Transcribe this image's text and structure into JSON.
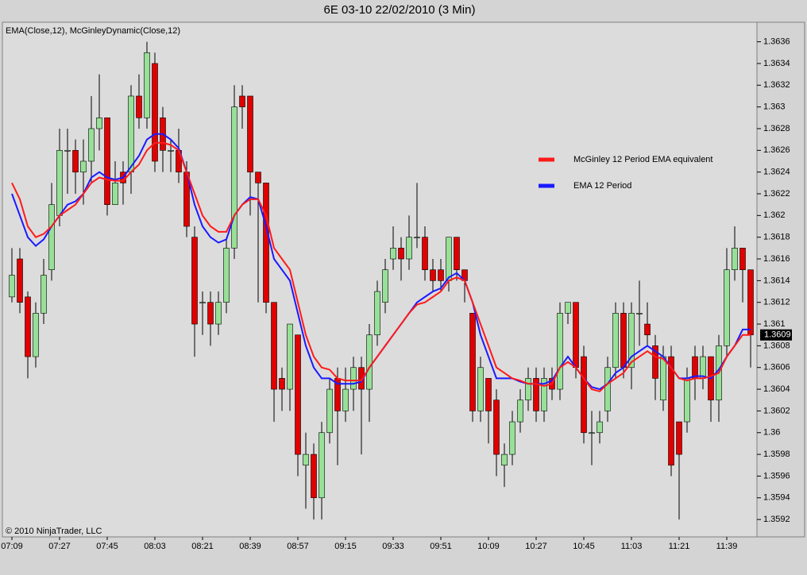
{
  "chart_data": {
    "type": "candlestick",
    "title": "6E 03-10  22/02/2010 (3 Min)",
    "subtitle": "EMA(Close,12), McGinleyDynamic(Close,12)",
    "annotation": "© 2010 NinjaTrader, LLC",
    "categories": [
      "07:09",
      null,
      null,
      null,
      null,
      null,
      "07:27",
      null,
      null,
      null,
      null,
      null,
      "07:45",
      null,
      null,
      null,
      null,
      null,
      "08:03",
      null,
      null,
      null,
      null,
      null,
      "08:21",
      null,
      null,
      null,
      null,
      null,
      "08:39",
      null,
      null,
      null,
      null,
      null,
      "08:57",
      null,
      null,
      null,
      null,
      null,
      "09:15",
      null,
      null,
      null,
      null,
      null,
      "09:33",
      null,
      null,
      null,
      null,
      null,
      "09:51",
      null,
      null,
      null,
      null,
      null,
      "10:09",
      null,
      null,
      null,
      null,
      null,
      "10:27",
      null,
      null,
      null,
      null,
      null,
      "10:45",
      null,
      null,
      null,
      null,
      null,
      "11:03",
      null,
      null,
      null,
      null,
      null,
      "11:21",
      null,
      null,
      null,
      null,
      null,
      "11:39",
      null,
      null,
      null
    ],
    "open": [
      1.36125,
      1.3616,
      1.36125,
      1.3607,
      1.3611,
      1.3615,
      1.362,
      1.3626,
      1.3626,
      1.3624,
      1.3625,
      1.3628,
      1.3629,
      1.3621,
      1.3624,
      1.3624,
      1.3631,
      1.3629,
      1.3634,
      1.3629,
      1.3626,
      1.3626,
      1.3624,
      1.3618,
      1.3612,
      1.3612,
      1.361,
      1.3612,
      1.3617,
      1.3631,
      1.3631,
      1.3624,
      1.3623,
      1.3612,
      1.3605,
      1.3604,
      1.3609,
      1.3597,
      1.3598,
      1.3594,
      1.36,
      1.3605,
      1.3602,
      1.3604,
      1.3606,
      1.3604,
      1.3609,
      1.3612,
      1.3616,
      1.3617,
      1.3616,
      1.3618,
      1.3618,
      1.3615,
      1.3615,
      1.3614,
      1.3618,
      1.3615,
      1.3611,
      1.3602,
      1.3605,
      1.3603,
      1.3597,
      1.3598,
      1.3601,
      1.3603,
      1.3605,
      1.3602,
      1.3605,
      1.3604,
      1.3611,
      1.3612,
      1.3607,
      1.36,
      1.36,
      1.3602,
      1.3606,
      1.3611,
      1.3606,
      1.3611,
      1.361,
      1.3608,
      1.3603,
      1.3607,
      1.3601,
      1.3601,
      1.3607,
      1.3605,
      1.3607,
      1.3603,
      1.3608,
      1.3615,
      1.3617,
      1.3615
    ],
    "high": [
      1.3617,
      1.3617,
      1.3613,
      1.3612,
      1.3616,
      1.3623,
      1.3628,
      1.3628,
      1.3627,
      1.3627,
      1.3631,
      1.3633,
      1.3629,
      1.3625,
      1.3625,
      1.3632,
      1.3633,
      1.3636,
      1.3635,
      1.363,
      1.3627,
      1.3628,
      1.3625,
      1.3619,
      1.3613,
      1.3613,
      1.3613,
      1.3618,
      1.3632,
      1.3632,
      1.3631,
      1.3624,
      1.3623,
      1.3612,
      1.3606,
      1.361,
      1.3609,
      1.36,
      1.3599,
      1.3601,
      1.3605,
      1.3606,
      1.3606,
      1.3607,
      1.3607,
      1.361,
      1.3614,
      1.3616,
      1.3619,
      1.3618,
      1.362,
      1.3623,
      1.3619,
      1.3616,
      1.3616,
      1.3618,
      1.3618,
      1.3615,
      1.3611,
      1.3607,
      1.3605,
      1.3604,
      1.3599,
      1.3602,
      1.3604,
      1.3606,
      1.3606,
      1.3606,
      1.3606,
      1.3612,
      1.3612,
      1.3612,
      1.3608,
      1.3602,
      1.3602,
      1.3607,
      1.3612,
      1.3612,
      1.3612,
      1.3614,
      1.3612,
      1.3609,
      1.3608,
      1.3608,
      1.3601,
      1.3606,
      1.3608,
      1.3608,
      1.3607,
      1.3609,
      1.3617,
      1.3619,
      1.3617,
      1.3615
    ],
    "low": [
      1.3612,
      1.3611,
      1.3605,
      1.3606,
      1.361,
      1.3614,
      1.3619,
      1.3622,
      1.3622,
      1.3621,
      1.3623,
      1.3626,
      1.362,
      1.3621,
      1.3621,
      1.3622,
      1.3628,
      1.3628,
      1.3624,
      1.3624,
      1.3624,
      1.3623,
      1.3618,
      1.3607,
      1.3609,
      1.3608,
      1.3609,
      1.3611,
      1.3616,
      1.3628,
      1.362,
      1.3612,
      1.3611,
      1.3601,
      1.3602,
      1.3602,
      1.3596,
      1.3593,
      1.3592,
      1.3592,
      1.3599,
      1.3597,
      1.3601,
      1.3602,
      1.3598,
      1.3601,
      1.3608,
      1.3611,
      1.3615,
      1.3614,
      1.3615,
      1.3617,
      1.3614,
      1.3613,
      1.3613,
      1.3613,
      1.3614,
      1.3612,
      1.3601,
      1.3601,
      1.3599,
      1.3596,
      1.3595,
      1.3597,
      1.36,
      1.3602,
      1.3601,
      1.3601,
      1.3603,
      1.3603,
      1.361,
      1.3605,
      1.3599,
      1.3597,
      1.3599,
      1.3601,
      1.3605,
      1.3605,
      1.3604,
      1.3608,
      1.3608,
      1.3603,
      1.3602,
      1.3596,
      1.3592,
      1.36,
      1.3603,
      1.3604,
      1.3601,
      1.3601,
      1.3607,
      1.3614,
      1.3612,
      1.3606
    ],
    "close": [
      1.36145,
      1.3612,
      1.3607,
      1.3611,
      1.36145,
      1.3621,
      1.3626,
      1.3626,
      1.3624,
      1.3625,
      1.3628,
      1.3629,
      1.3621,
      1.3623,
      1.3623,
      1.3631,
      1.3629,
      1.3635,
      1.3625,
      1.3626,
      1.3626,
      1.3624,
      1.3619,
      1.361,
      1.3612,
      1.361,
      1.3612,
      1.3617,
      1.363,
      1.363,
      1.3624,
      1.3623,
      1.3612,
      1.3604,
      1.3604,
      1.361,
      1.3598,
      1.3598,
      1.3594,
      1.36,
      1.3604,
      1.3602,
      1.3604,
      1.3606,
      1.3604,
      1.3609,
      1.3613,
      1.3615,
      1.3617,
      1.3616,
      1.3618,
      1.3618,
      1.3615,
      1.3614,
      1.3614,
      1.3618,
      1.3615,
      1.3614,
      1.3602,
      1.3606,
      1.3602,
      1.3598,
      1.3598,
      1.3601,
      1.3603,
      1.3605,
      1.3602,
      1.3605,
      1.3604,
      1.3611,
      1.3612,
      1.3606,
      1.36,
      1.36,
      1.3601,
      1.3606,
      1.3611,
      1.3606,
      1.3611,
      1.3611,
      1.3609,
      1.3605,
      1.3607,
      1.3597,
      1.3598,
      1.3605,
      1.3605,
      1.3607,
      1.3603,
      1.3608,
      1.3615,
      1.3617,
      1.3615,
      1.3609
    ],
    "up_color": "#98e098",
    "down_color": "#e00000",
    "series": [
      {
        "name": "McGinley 12 Period EMA equivalent",
        "color": "#ff1a1a",
        "values": [
          1.3623,
          1.36215,
          1.3619,
          1.3618,
          1.36183,
          1.3619,
          1.362,
          1.36205,
          1.3621,
          1.3622,
          1.3623,
          1.36235,
          1.36233,
          1.36232,
          1.36232,
          1.3624,
          1.36247,
          1.3626,
          1.36267,
          1.36267,
          1.36265,
          1.3626,
          1.3624,
          1.3622,
          1.362,
          1.3619,
          1.36185,
          1.36185,
          1.362,
          1.3621,
          1.36215,
          1.36215,
          1.362,
          1.3617,
          1.3616,
          1.3615,
          1.3612,
          1.3609,
          1.3607,
          1.3606,
          1.36058,
          1.3605,
          1.36048,
          1.36048,
          1.36048,
          1.3606,
          1.3607,
          1.3608,
          1.3609,
          1.361,
          1.3611,
          1.36118,
          1.3612,
          1.36125,
          1.3613,
          1.3614,
          1.36143,
          1.3614,
          1.3612,
          1.361,
          1.3608,
          1.3606,
          1.36055,
          1.3605,
          1.36048,
          1.36045,
          1.36045,
          1.36043,
          1.36045,
          1.3606,
          1.36065,
          1.3606,
          1.3605,
          1.3604,
          1.36038,
          1.36045,
          1.3605,
          1.36055,
          1.36065,
          1.3607,
          1.36075,
          1.3607,
          1.36068,
          1.3606,
          1.3605,
          1.36048,
          1.3605,
          1.3605,
          1.36052,
          1.36055,
          1.3607,
          1.3608,
          1.3609,
          1.3609
        ]
      },
      {
        "name": "EMA 12 Period",
        "color": "#1a1aff",
        "values": [
          1.3622,
          1.362,
          1.3618,
          1.36172,
          1.36178,
          1.3619,
          1.362,
          1.3621,
          1.36213,
          1.3622,
          1.36235,
          1.3624,
          1.36235,
          1.36233,
          1.36235,
          1.36245,
          1.36255,
          1.3627,
          1.36275,
          1.36275,
          1.3627,
          1.36262,
          1.3624,
          1.3621,
          1.3619,
          1.3618,
          1.36175,
          1.36178,
          1.362,
          1.3621,
          1.36217,
          1.36215,
          1.3619,
          1.3616,
          1.3615,
          1.3614,
          1.3611,
          1.3608,
          1.3606,
          1.3605,
          1.3605,
          1.36045,
          1.36045,
          1.36045,
          1.36047,
          1.3606,
          1.3607,
          1.3608,
          1.3609,
          1.361,
          1.3611,
          1.3612,
          1.36125,
          1.3613,
          1.36133,
          1.36143,
          1.36147,
          1.3614,
          1.3612,
          1.3609,
          1.3607,
          1.3605,
          1.3605,
          1.3605,
          1.36047,
          1.36045,
          1.36045,
          1.36045,
          1.36048,
          1.3606,
          1.3607,
          1.3606,
          1.3605,
          1.36042,
          1.3604,
          1.36045,
          1.36055,
          1.3606,
          1.3607,
          1.36075,
          1.3608,
          1.36075,
          1.3607,
          1.3606,
          1.3605,
          1.3605,
          1.36052,
          1.36052,
          1.3605,
          1.36058,
          1.3607,
          1.3608,
          1.36095,
          1.36095
        ]
      }
    ],
    "ylim": [
      1.35904,
      1.36378
    ],
    "yticks": [
      1.3592,
      1.3594,
      1.3596,
      1.3598,
      1.36,
      1.3602,
      1.3604,
      1.3606,
      1.3608,
      1.361,
      1.3612,
      1.3614,
      1.3616,
      1.3618,
      1.362,
      1.3622,
      1.3624,
      1.3626,
      1.3628,
      1.363,
      1.3632,
      1.3634,
      1.3636
    ],
    "grid": false
  }
}
